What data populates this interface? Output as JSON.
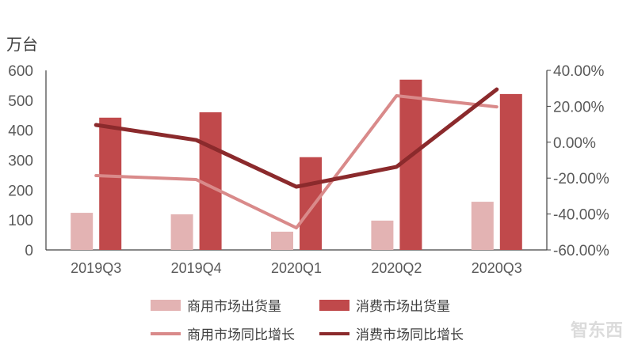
{
  "chart_data": {
    "type": "bar",
    "categories": [
      "2019Q3",
      "2019Q4",
      "2020Q1",
      "2020Q2",
      "2020Q3"
    ],
    "y_left": {
      "label": "万台",
      "range": [
        0,
        600
      ],
      "ticks": [
        "0",
        "100",
        "200",
        "300",
        "400",
        "500",
        "600"
      ]
    },
    "y_right": {
      "range": [
        -60,
        40
      ],
      "ticks": [
        "-60.00%",
        "-40.00%",
        "-20.00%",
        "0.00%",
        "20.00%",
        "40.00%"
      ]
    },
    "series": [
      {
        "name": "商用市场出货量",
        "type": "bar",
        "axis": "left",
        "color": "#e3b3b3",
        "values": [
          124,
          119,
          61,
          98,
          161
        ]
      },
      {
        "name": "消费市场出货量",
        "type": "bar",
        "axis": "left",
        "color": "#c0494b",
        "values": [
          442,
          460,
          310,
          569,
          521
        ]
      },
      {
        "name": "商用市场同比增长",
        "type": "line",
        "axis": "right",
        "color": "#d98a8a",
        "values": [
          -18.6,
          -20.8,
          -47.7,
          25.9,
          19.7
        ]
      },
      {
        "name": "消费市场同比增长",
        "type": "line",
        "axis": "right",
        "color": "#8b2a2c",
        "values": [
          9.6,
          1.2,
          -24.8,
          -13.7,
          29.4
        ]
      }
    ],
    "grid": false,
    "legend_placement": "bottom"
  },
  "watermark": "智东西"
}
